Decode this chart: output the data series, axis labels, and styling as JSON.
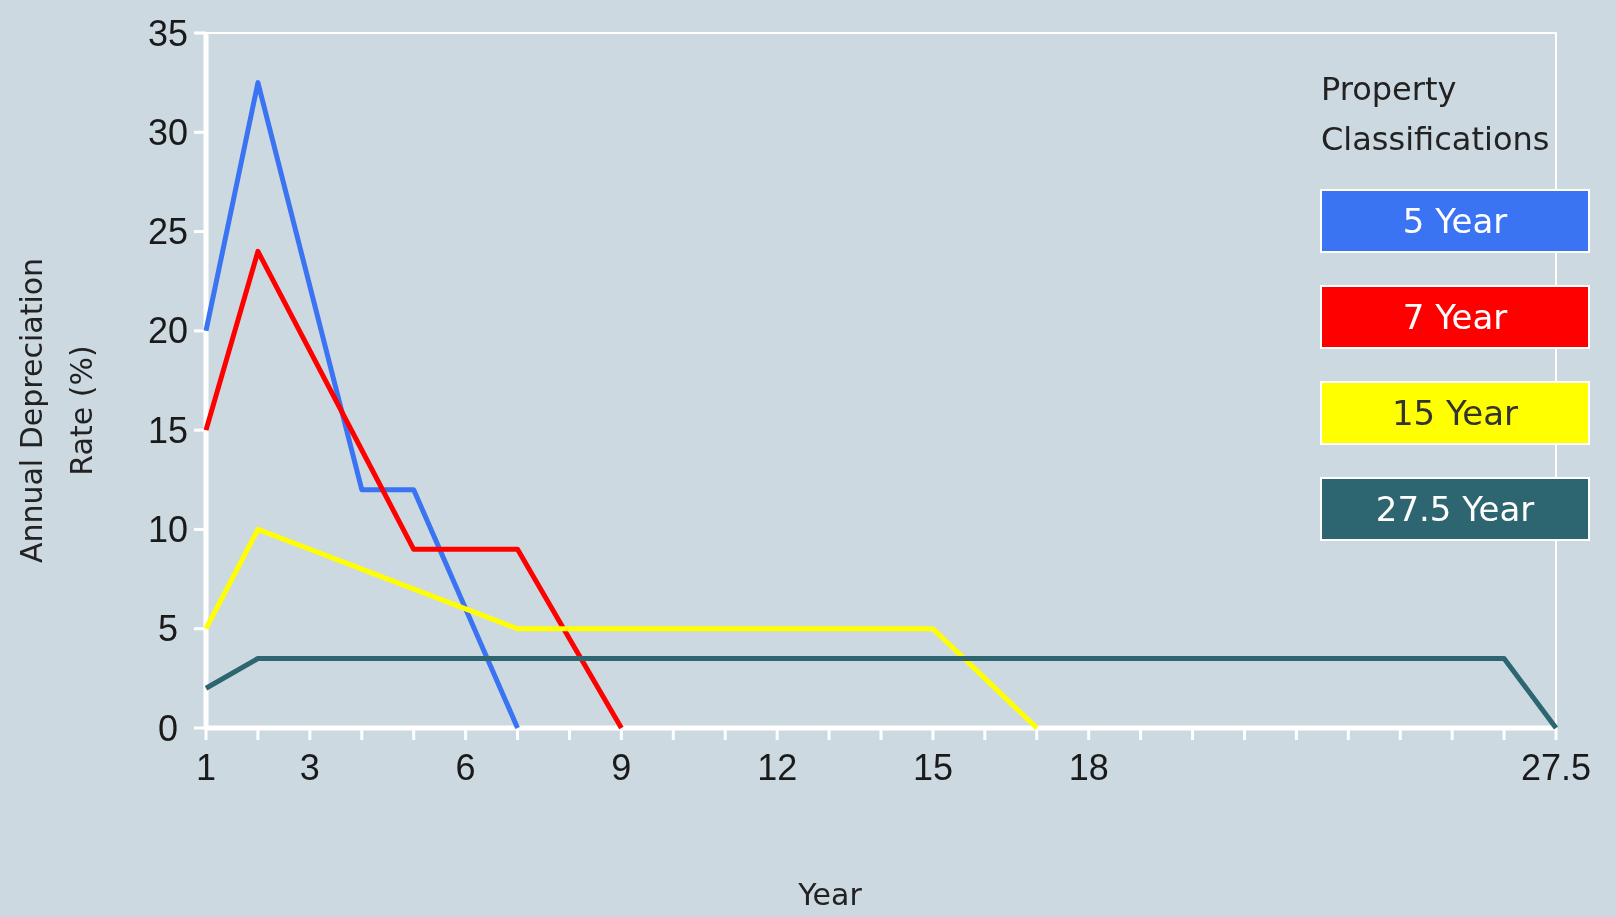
{
  "chart_data": {
    "type": "line",
    "xlabel": "Year",
    "ylabel": "Annual Depreciation Rate (%)",
    "legend_title": "Property Classifications",
    "legend": "top right",
    "grid": false,
    "line_style": "solid",
    "marker": "none",
    "categories": [
      "1",
      null,
      "3",
      null,
      null,
      "6",
      null,
      null,
      "9",
      null,
      null,
      "12",
      null,
      null,
      "15",
      null,
      null,
      "18",
      null,
      null,
      null,
      null,
      null,
      null,
      null,
      null,
      "27.5"
    ],
    "ylim": [
      0,
      35
    ],
    "yticks": [
      0,
      5,
      10,
      15,
      20,
      25,
      30,
      35
    ],
    "series": [
      {
        "name": "5 Year",
        "color": "#3a74f2",
        "values": [
          20,
          32.5,
          22.25,
          12,
          12,
          6,
          0,
          null,
          null,
          null,
          null,
          null,
          null,
          null,
          null,
          null,
          null,
          null,
          null,
          null,
          null,
          null,
          null,
          null,
          null,
          null,
          null
        ]
      },
      {
        "name": "7 Year",
        "color": "#ff0000",
        "values": [
          15,
          24,
          19,
          14,
          9,
          9,
          9,
          4.5,
          0,
          null,
          null,
          null,
          null,
          null,
          null,
          null,
          null,
          null,
          null,
          null,
          null,
          null,
          null,
          null,
          null,
          null,
          null
        ]
      },
      {
        "name": "15 Year",
        "color": "#ffff00",
        "values": [
          5,
          10,
          9,
          8,
          7,
          6,
          5,
          5,
          5,
          5,
          5,
          5,
          5,
          5,
          5,
          2.5,
          0,
          null,
          null,
          null,
          null,
          null,
          null,
          null,
          null,
          null,
          null
        ]
      },
      {
        "name": "27.5 Year",
        "color": "#2d6670",
        "values": [
          2,
          3.5,
          3.5,
          3.5,
          3.5,
          3.5,
          3.5,
          3.5,
          3.5,
          3.5,
          3.5,
          3.5,
          3.5,
          3.5,
          3.5,
          3.5,
          3.5,
          3.5,
          3.5,
          3.5,
          3.5,
          3.5,
          3.5,
          3.5,
          3.5,
          3.5,
          0
        ]
      }
    ]
  }
}
